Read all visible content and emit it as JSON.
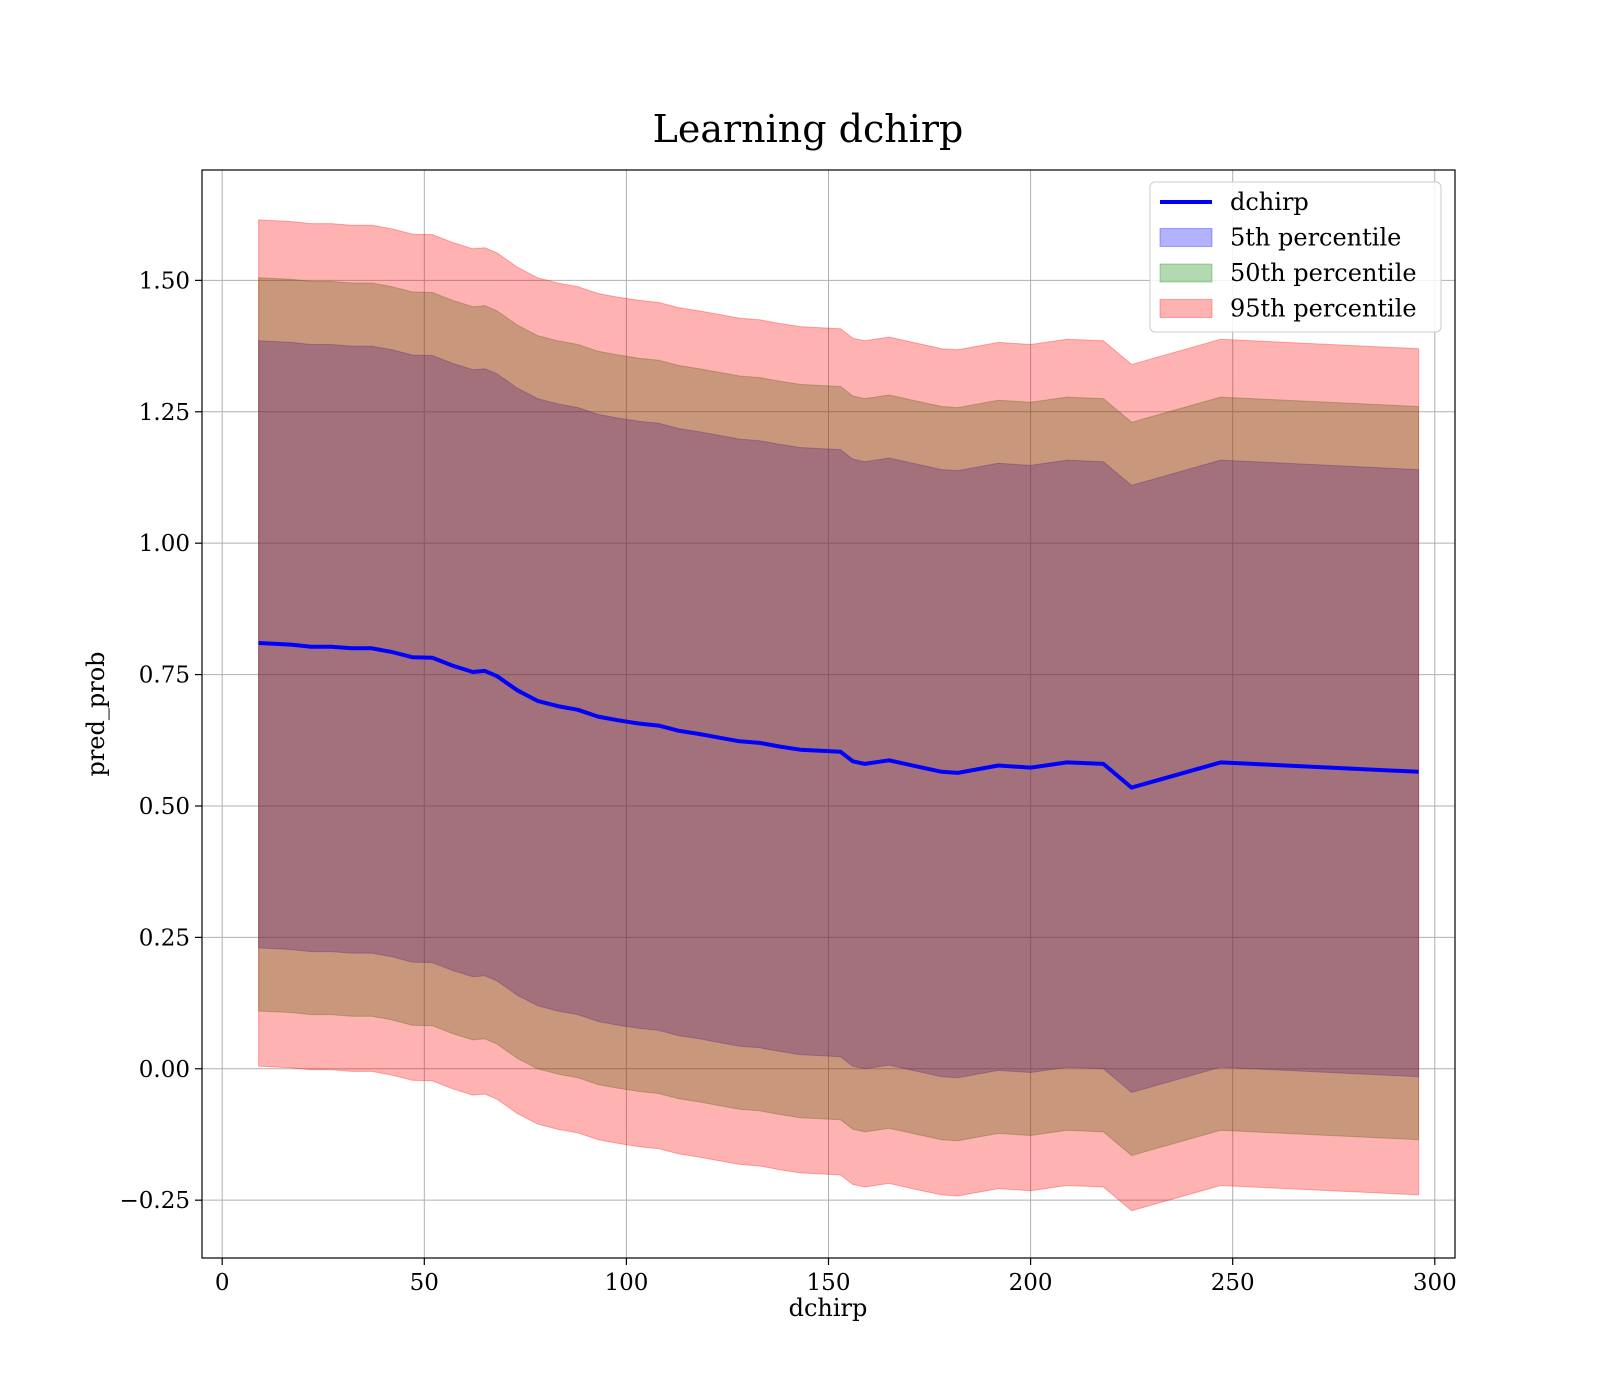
{
  "chart_data": {
    "type": "area",
    "title": "Learning dchirp",
    "xlabel": "dchirp",
    "ylabel": "pred_prob",
    "xlim": [
      -5,
      305
    ],
    "ylim": [
      -0.36,
      1.71
    ],
    "grid": true,
    "legend_position": "top-right",
    "x_ticks": [
      0,
      50,
      100,
      150,
      200,
      250,
      300
    ],
    "x_tick_labels": [
      "0",
      "50",
      "100",
      "150",
      "200",
      "250",
      "300"
    ],
    "y_ticks": [
      -0.25,
      0.0,
      0.25,
      0.5,
      0.75,
      1.0,
      1.25,
      1.5
    ],
    "y_tick_labels": [
      "−0.25",
      "0.00",
      "0.25",
      "0.50",
      "0.75",
      "1.00",
      "1.25",
      "1.50"
    ],
    "x": [
      9,
      17,
      22,
      27,
      32,
      37,
      42,
      47,
      52,
      57,
      62,
      65,
      68,
      73,
      78,
      83,
      88,
      93,
      98,
      103,
      108,
      113,
      118,
      123,
      128,
      133,
      138,
      143,
      148,
      153,
      156,
      159,
      165,
      172,
      178,
      182,
      192,
      200,
      209,
      218,
      225,
      247,
      296
    ],
    "series": [
      {
        "name": "dchirp",
        "type": "line",
        "color": "#0000ff",
        "values": [
          0.81,
          0.807,
          0.803,
          0.803,
          0.8,
          0.8,
          0.793,
          0.783,
          0.782,
          0.767,
          0.755,
          0.757,
          0.747,
          0.72,
          0.7,
          0.69,
          0.683,
          0.67,
          0.663,
          0.657,
          0.653,
          0.643,
          0.637,
          0.63,
          0.623,
          0.62,
          0.613,
          0.607,
          0.605,
          0.603,
          0.585,
          0.58,
          0.587,
          0.575,
          0.565,
          0.563,
          0.577,
          0.573,
          0.583,
          0.58,
          0.535,
          0.583,
          0.565
        ]
      },
      {
        "name": "5th percentile",
        "type": "band",
        "color": "#0000ff",
        "lower_offsets": [
          0.58,
          0.58,
          0.58,
          0.58,
          0.58,
          0.58,
          0.58,
          0.58,
          0.58,
          0.58,
          0.58,
          0.58,
          0.58,
          0.58,
          0.58,
          0.58,
          0.58,
          0.58,
          0.58,
          0.58,
          0.58,
          0.58,
          0.58,
          0.58,
          0.58,
          0.58,
          0.58,
          0.58,
          0.58,
          0.58,
          0.58,
          0.58,
          0.58,
          0.58,
          0.58,
          0.58,
          0.58,
          0.58,
          0.58,
          0.58,
          0.58,
          0.58,
          0.58
        ],
        "upper_offsets": [
          0.575,
          0.575,
          0.575,
          0.575,
          0.575,
          0.575,
          0.575,
          0.575,
          0.575,
          0.575,
          0.575,
          0.575,
          0.575,
          0.575,
          0.575,
          0.575,
          0.575,
          0.575,
          0.575,
          0.575,
          0.575,
          0.575,
          0.575,
          0.575,
          0.575,
          0.575,
          0.575,
          0.575,
          0.575,
          0.575,
          0.575,
          0.575,
          0.575,
          0.575,
          0.575,
          0.575,
          0.575,
          0.575,
          0.575,
          0.575,
          0.575,
          0.575,
          0.575
        ]
      },
      {
        "name": "50th percentile",
        "type": "band",
        "color": "#008000",
        "lower_offsets": [
          0.7,
          0.7,
          0.7,
          0.7,
          0.7,
          0.7,
          0.7,
          0.7,
          0.7,
          0.7,
          0.7,
          0.7,
          0.7,
          0.7,
          0.7,
          0.7,
          0.7,
          0.7,
          0.7,
          0.7,
          0.7,
          0.7,
          0.7,
          0.7,
          0.7,
          0.7,
          0.7,
          0.7,
          0.7,
          0.7,
          0.7,
          0.7,
          0.7,
          0.7,
          0.7,
          0.7,
          0.7,
          0.7,
          0.7,
          0.7,
          0.7,
          0.7,
          0.7
        ],
        "upper_offsets": [
          0.695,
          0.695,
          0.695,
          0.695,
          0.695,
          0.695,
          0.695,
          0.695,
          0.695,
          0.695,
          0.695,
          0.695,
          0.695,
          0.695,
          0.695,
          0.695,
          0.695,
          0.695,
          0.695,
          0.695,
          0.695,
          0.695,
          0.695,
          0.695,
          0.695,
          0.695,
          0.695,
          0.695,
          0.695,
          0.695,
          0.695,
          0.695,
          0.695,
          0.695,
          0.695,
          0.695,
          0.695,
          0.695,
          0.695,
          0.695,
          0.695,
          0.695,
          0.695
        ]
      },
      {
        "name": "95th percentile",
        "type": "band",
        "color": "#ff0000",
        "lower_offsets": [
          0.805,
          0.805,
          0.805,
          0.805,
          0.805,
          0.805,
          0.805,
          0.805,
          0.805,
          0.805,
          0.805,
          0.805,
          0.805,
          0.805,
          0.805,
          0.805,
          0.805,
          0.805,
          0.805,
          0.805,
          0.805,
          0.805,
          0.805,
          0.805,
          0.805,
          0.805,
          0.805,
          0.805,
          0.805,
          0.805,
          0.805,
          0.805,
          0.805,
          0.805,
          0.805,
          0.805,
          0.805,
          0.805,
          0.805,
          0.805,
          0.805,
          0.805,
          0.805
        ],
        "upper_offsets": [
          0.805,
          0.805,
          0.805,
          0.805,
          0.805,
          0.805,
          0.805,
          0.805,
          0.805,
          0.805,
          0.805,
          0.805,
          0.805,
          0.805,
          0.805,
          0.805,
          0.805,
          0.805,
          0.805,
          0.805,
          0.805,
          0.805,
          0.805,
          0.805,
          0.805,
          0.805,
          0.805,
          0.805,
          0.805,
          0.805,
          0.805,
          0.805,
          0.805,
          0.805,
          0.805,
          0.805,
          0.805,
          0.805,
          0.805,
          0.805,
          0.805,
          0.805,
          0.805
        ]
      }
    ]
  }
}
